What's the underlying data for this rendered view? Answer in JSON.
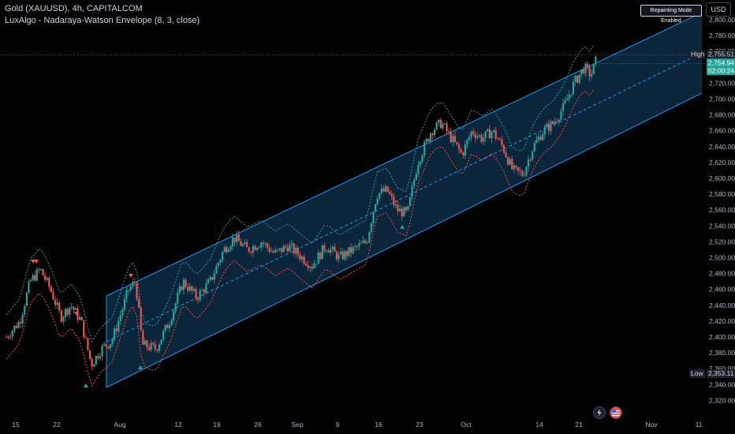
{
  "header": {
    "symbol_line": "Gold (XAUUSD), 4h, CAPITALCOM",
    "indicator_line": "LuxAlgo - Nadaraya-Watson Envelope (8, 3, close)"
  },
  "badges": {
    "mode": "Repainting Mode Enabled",
    "currency": "USD"
  },
  "price_axis": {
    "ticks": [
      "2,800.00",
      "2,780.00",
      "2,760.00",
      "2,740.00",
      "2,720.00",
      "2,700.00",
      "2,680.00",
      "2,660.00",
      "2,640.00",
      "2,620.00",
      "2,600.00",
      "2,580.00",
      "2,560.00",
      "2,540.00",
      "2,520.00",
      "2,500.00",
      "2,480.00",
      "2,460.00",
      "2,440.00",
      "2,420.00",
      "2,400.00",
      "2,380.00",
      "2,360.00",
      "2,340.00",
      "2,320.00"
    ],
    "high_label": "High",
    "high_value": "2,755.51",
    "current_value": "2,754.94",
    "countdown": "02:00:24",
    "low_label": "Low",
    "low_value": "2,353.11"
  },
  "time_axis": {
    "ticks": [
      "15",
      "22",
      "Aug",
      "12",
      "19",
      "26",
      "Sep",
      "9",
      "16",
      "23",
      "Oct",
      "14",
      "21",
      "Nov",
      "11"
    ]
  },
  "colors": {
    "up": "#26a69a",
    "down": "#ef5350",
    "channel": "#2196f3",
    "envelope_upper": "#26a69a",
    "envelope_lower": "#ef5350",
    "midline": "#2196f3",
    "background": "#000000"
  },
  "chart_data": {
    "type": "candlestick",
    "title": "Gold (XAUUSD), 4h, CAPITALCOM",
    "ylim": [
      2310,
      2810
    ],
    "x_ticks": [
      "15",
      "22",
      "Aug",
      "12",
      "19",
      "26",
      "Sep",
      "9",
      "16",
      "23",
      "Oct",
      "14",
      "21",
      "Nov",
      "11"
    ],
    "price_path": [
      {
        "t": 0,
        "p": 2400
      },
      {
        "t": 0.02,
        "p": 2420
      },
      {
        "t": 0.035,
        "p": 2470
      },
      {
        "t": 0.05,
        "p": 2485
      },
      {
        "t": 0.065,
        "p": 2460
      },
      {
        "t": 0.08,
        "p": 2425
      },
      {
        "t": 0.095,
        "p": 2440
      },
      {
        "t": 0.11,
        "p": 2420
      },
      {
        "t": 0.125,
        "p": 2365
      },
      {
        "t": 0.14,
        "p": 2385
      },
      {
        "t": 0.155,
        "p": 2395
      },
      {
        "t": 0.165,
        "p": 2420
      },
      {
        "t": 0.18,
        "p": 2460
      },
      {
        "t": 0.19,
        "p": 2470
      },
      {
        "t": 0.2,
        "p": 2390
      },
      {
        "t": 0.22,
        "p": 2385
      },
      {
        "t": 0.24,
        "p": 2420
      },
      {
        "t": 0.26,
        "p": 2470
      },
      {
        "t": 0.28,
        "p": 2450
      },
      {
        "t": 0.3,
        "p": 2470
      },
      {
        "t": 0.32,
        "p": 2510
      },
      {
        "t": 0.335,
        "p": 2525
      },
      {
        "t": 0.355,
        "p": 2510
      },
      {
        "t": 0.375,
        "p": 2520
      },
      {
        "t": 0.395,
        "p": 2505
      },
      {
        "t": 0.415,
        "p": 2515
      },
      {
        "t": 0.435,
        "p": 2500
      },
      {
        "t": 0.45,
        "p": 2490
      },
      {
        "t": 0.47,
        "p": 2515
      },
      {
        "t": 0.49,
        "p": 2500
      },
      {
        "t": 0.51,
        "p": 2510
      },
      {
        "t": 0.53,
        "p": 2520
      },
      {
        "t": 0.545,
        "p": 2580
      },
      {
        "t": 0.56,
        "p": 2585
      },
      {
        "t": 0.575,
        "p": 2560
      },
      {
        "t": 0.59,
        "p": 2555
      },
      {
        "t": 0.605,
        "p": 2620
      },
      {
        "t": 0.625,
        "p": 2660
      },
      {
        "t": 0.64,
        "p": 2670
      },
      {
        "t": 0.655,
        "p": 2650
      },
      {
        "t": 0.67,
        "p": 2630
      },
      {
        "t": 0.685,
        "p": 2660
      },
      {
        "t": 0.7,
        "p": 2650
      },
      {
        "t": 0.715,
        "p": 2660
      },
      {
        "t": 0.73,
        "p": 2640
      },
      {
        "t": 0.745,
        "p": 2610
      },
      {
        "t": 0.76,
        "p": 2605
      },
      {
        "t": 0.775,
        "p": 2640
      },
      {
        "t": 0.79,
        "p": 2660
      },
      {
        "t": 0.805,
        "p": 2670
      },
      {
        "t": 0.82,
        "p": 2690
      },
      {
        "t": 0.835,
        "p": 2720
      },
      {
        "t": 0.85,
        "p": 2740
      },
      {
        "t": 0.86,
        "p": 2730
      },
      {
        "t": 0.87,
        "p": 2755
      }
    ],
    "high": 2755.51,
    "low": 2353.11,
    "current": 2754.94
  }
}
